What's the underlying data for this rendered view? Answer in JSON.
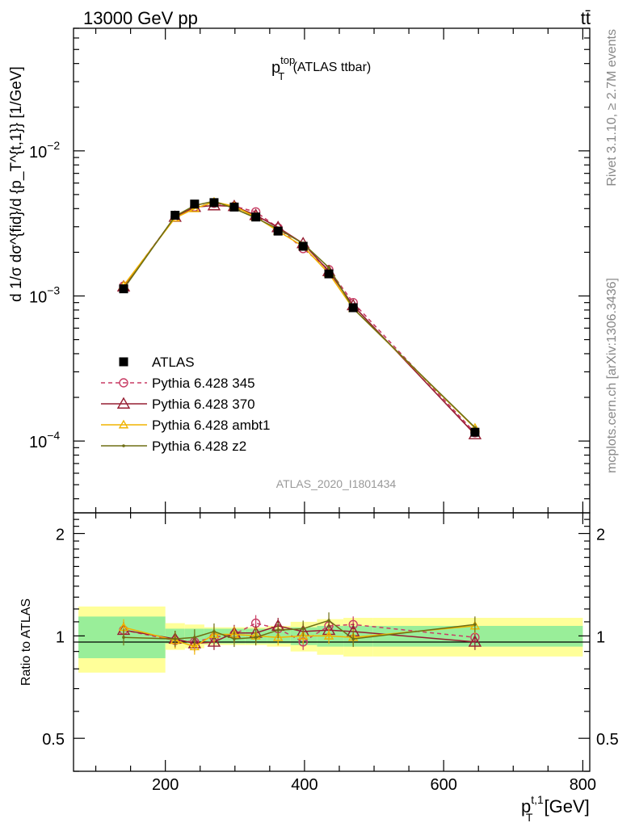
{
  "header": {
    "left": "13000 GeV pp",
    "right": "tt̄"
  },
  "side_labels": {
    "rivet": "Rivet 3.1.10, ≥ 2.7M events",
    "mcplots": "mcplots.cern.ch [arXiv:1306.3436]"
  },
  "main_plot": {
    "title_main": "p",
    "title_sup": "top",
    "title_sub": "T",
    "title_rest": " (ATLAS ttbar)",
    "ylabel": "d 1/σ dσ^{fid}/d {p_T^{t,1}} [1/GeV]",
    "watermark": "ATLAS_2020_I1801434",
    "yticks": [
      {
        "base": "10",
        "exp": "−2",
        "value": 0.01
      },
      {
        "base": "10",
        "exp": "−3",
        "value": 0.001
      },
      {
        "base": "10",
        "exp": "−4",
        "value": 0.0001
      }
    ]
  },
  "ratio_plot": {
    "ylabel": "Ratio to ATLAS",
    "yticks": [
      "2",
      "1",
      "0.5"
    ]
  },
  "xaxis": {
    "label_main": "p",
    "label_sup": "t,1",
    "label_sub": "T",
    "label_unit": " [GeV]",
    "ticks": [
      "200",
      "400",
      "600",
      "800"
    ]
  },
  "chart_data": {
    "type": "line",
    "title": "p_T^top (ATLAS ttbar)",
    "xlabel": "p_T^{t,1} [GeV]",
    "ylabel": "1/σ dσ^fid / d p_T^{t,1} [1/GeV]",
    "y_scale": "log",
    "xlim": [
      68,
      810
    ],
    "ylim": [
      3.2e-05,
      0.07
    ],
    "ratio_ylim": [
      0.4,
      2.3
    ],
    "ratio_ylabel": "Ratio to ATLAS",
    "legend_position": "left-middle",
    "bins": [
      [
        75,
        200
      ],
      [
        200,
        228
      ],
      [
        228,
        256
      ],
      [
        256,
        284
      ],
      [
        284,
        315
      ],
      [
        315,
        346
      ],
      [
        346,
        380
      ],
      [
        380,
        418
      ],
      [
        418,
        456
      ],
      [
        456,
        498
      ],
      [
        498,
        800
      ]
    ],
    "x": [
      140,
      214,
      242,
      270,
      299,
      330,
      362,
      398,
      435,
      470,
      645
    ],
    "ratio_band_inner": [
      0.14,
      0.05,
      0.05,
      0.05,
      0.05,
      0.05,
      0.05,
      0.06,
      0.07,
      0.07,
      0.07
    ],
    "ratio_band_outer": [
      0.22,
      0.09,
      0.08,
      0.06,
      0.06,
      0.06,
      0.07,
      0.1,
      0.12,
      0.13,
      0.13
    ],
    "series": [
      {
        "name": "ATLAS",
        "color": "#000000",
        "marker": "filled-square",
        "values": [
          0.00112,
          0.0036,
          0.0043,
          0.0044,
          0.0041,
          0.0035,
          0.0028,
          0.0022,
          0.00142,
          0.00083,
          0.000115
        ]
      },
      {
        "name": "Pythia 6.428 345",
        "color": "#c83c64",
        "marker": "open-circle",
        "line": "dashed",
        "values": [
          0.00117,
          0.0035,
          0.0041,
          0.00435,
          0.00415,
          0.0038,
          0.00295,
          0.00212,
          0.00152,
          0.0009,
          0.000114
        ],
        "ratio": [
          1.04,
          0.97,
          0.96,
          0.99,
          1.01,
          1.09,
          1.05,
          0.96,
          1.07,
          1.08,
          0.99
        ]
      },
      {
        "name": "Pythia 6.428 370",
        "color": "#961e32",
        "marker": "open-triangle",
        "line": "solid",
        "values": [
          0.00116,
          0.0035,
          0.0041,
          0.0042,
          0.00415,
          0.0036,
          0.00297,
          0.0023,
          0.00148,
          0.00086,
          0.000111
        ],
        "ratio": [
          1.04,
          0.98,
          0.95,
          0.96,
          1.02,
          1.02,
          1.07,
          1.03,
          1.04,
          1.03,
          0.96
        ]
      },
      {
        "name": "Pythia 6.428 ambt1",
        "color": "#f0b400",
        "marker": "open-triangle-small",
        "line": "solid",
        "values": [
          0.00118,
          0.00345,
          0.004,
          0.00445,
          0.00415,
          0.0035,
          0.0028,
          0.0022,
          0.00143,
          0.00082,
          0.000123
        ],
        "ratio": [
          1.06,
          0.97,
          0.93,
          1.01,
          1.01,
          1.0,
          0.99,
          1.0,
          1.0,
          0.99,
          1.07
        ]
      },
      {
        "name": "Pythia 6.428 z2",
        "color": "#6e6e14",
        "marker": "dot",
        "line": "solid",
        "values": [
          0.00112,
          0.00355,
          0.0042,
          0.0045,
          0.004,
          0.00345,
          0.0029,
          0.0023,
          0.00157,
          0.00082,
          0.000124
        ],
        "ratio": [
          0.99,
          0.98,
          0.99,
          1.03,
          0.98,
          0.99,
          1.04,
          1.05,
          1.11,
          0.98,
          1.08
        ]
      }
    ]
  }
}
